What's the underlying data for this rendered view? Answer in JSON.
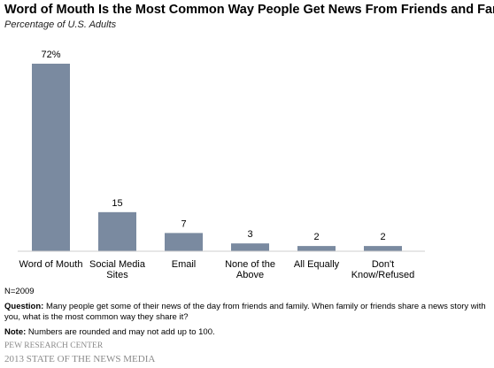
{
  "title": "Word of Mouth Is the Most Common Way People Get News From Friends and Family",
  "subtitle": "Percentage of U.S. Adults",
  "chart_data": {
    "type": "bar",
    "categories": [
      [
        "Word of Mouth"
      ],
      [
        "Social Media",
        "Sites"
      ],
      [
        "Email"
      ],
      [
        "None of the",
        "Above"
      ],
      [
        "All Equally"
      ],
      [
        "Don't",
        "Know/Refused"
      ]
    ],
    "values": [
      72,
      15,
      7,
      3,
      2,
      2
    ],
    "value_labels": [
      "72%",
      "15",
      "7",
      "3",
      "2",
      "2"
    ],
    "bar_color": "#7a8aa0",
    "ylim": [
      0,
      72
    ],
    "grid": false,
    "legend": "none"
  },
  "footnotes": {
    "n": "N=2009",
    "question_label": "Question:",
    "question_text": " Many people get some of their news of the day from friends and family. When family or friends share a news story with you, what is the most common way they share it?",
    "note_label": "Note:",
    "note_text": " Numbers are rounded and may not add up to 100.",
    "source": "PEW RESEARCH CENTER",
    "publication": "2013 STATE OF THE NEWS MEDIA"
  }
}
